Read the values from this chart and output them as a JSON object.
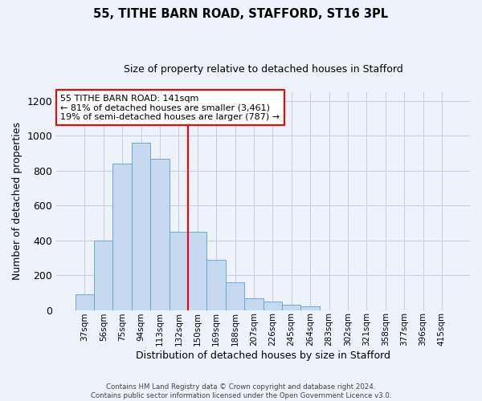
{
  "title1": "55, TITHE BARN ROAD, STAFFORD, ST16 3PL",
  "title2": "Size of property relative to detached houses in Stafford",
  "xlabel": "Distribution of detached houses by size in Stafford",
  "ylabel": "Number of detached properties",
  "categories": [
    "37sqm",
    "56sqm",
    "75sqm",
    "94sqm",
    "113sqm",
    "132sqm",
    "150sqm",
    "169sqm",
    "188sqm",
    "207sqm",
    "226sqm",
    "245sqm",
    "264sqm",
    "283sqm",
    "302sqm",
    "321sqm",
    "358sqm",
    "377sqm",
    "396sqm",
    "415sqm"
  ],
  "values": [
    90,
    400,
    840,
    960,
    870,
    450,
    450,
    290,
    160,
    65,
    50,
    30,
    20,
    0,
    0,
    0,
    0,
    0,
    0,
    0
  ],
  "bar_color": "#c5d9f0",
  "bar_edge_color": "#6aaad4",
  "vline_x": 6.0,
  "vline_color": "red",
  "annotation_text": "55 TITHE BARN ROAD: 141sqm\n← 81% of detached houses are smaller (3,461)\n19% of semi-detached houses are larger (787) →",
  "ylim": [
    0,
    1250
  ],
  "yticks": [
    0,
    200,
    400,
    600,
    800,
    1000,
    1200
  ],
  "footer": "Contains HM Land Registry data © Crown copyright and database right 2024.\nContains public sector information licensed under the Open Government Licence v3.0.",
  "background_color": "#eef2fb",
  "grid_color": "#c8d0e8",
  "title1_fontsize": 10.5,
  "title2_fontsize": 9
}
